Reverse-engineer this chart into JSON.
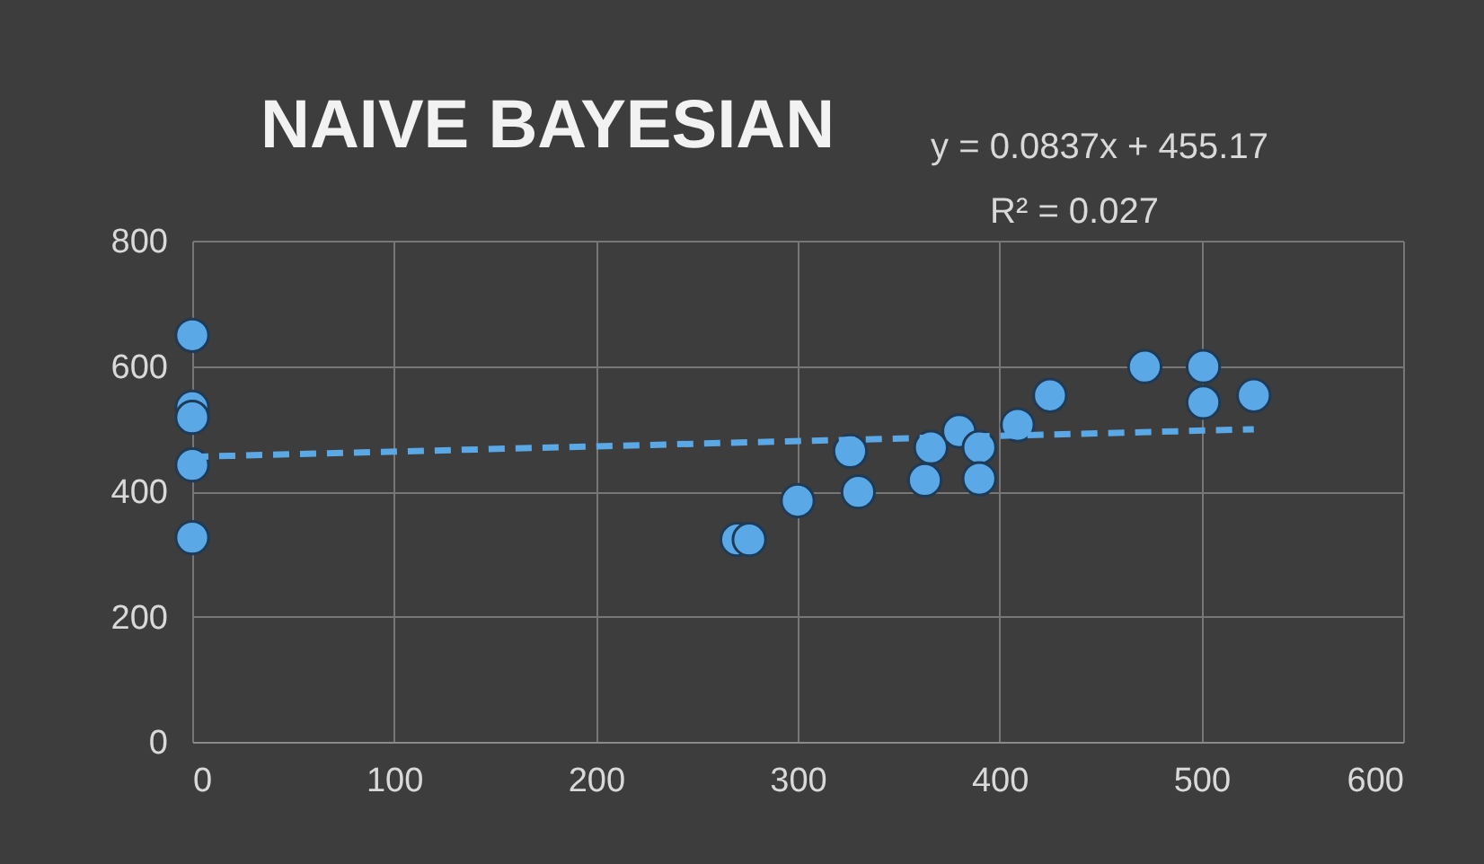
{
  "chart_data": {
    "type": "scatter",
    "title": "NAIVE BAYESIAN",
    "annotations": [
      "y = 0.0837x + 455.17",
      "R² = 0.027"
    ],
    "xlim": [
      0,
      600
    ],
    "xticks": [
      0,
      100,
      200,
      300,
      400,
      500,
      600
    ],
    "ylim": [
      0,
      800
    ],
    "yticks": [
      0,
      200,
      400,
      600,
      800
    ],
    "grid": true,
    "series": [
      {
        "color": "#5aa9e6",
        "marker": "circle",
        "x": [
          0,
          0,
          0,
          0,
          0,
          270,
          276,
          300,
          326,
          330,
          363,
          366,
          380,
          390,
          390,
          409,
          425,
          472,
          501,
          501,
          526
        ],
        "values": [
          649,
          534,
          518,
          442,
          326,
          323,
          323,
          385,
          464,
          399,
          418,
          470,
          496,
          470,
          420,
          506,
          553,
          599,
          599,
          542,
          553
        ]
      },
      {
        "type": "line",
        "color": "#5aa9e6",
        "line_style": "dashed",
        "marker": "none",
        "x": [
          0,
          526
        ],
        "values": [
          455,
          499
        ]
      }
    ]
  }
}
